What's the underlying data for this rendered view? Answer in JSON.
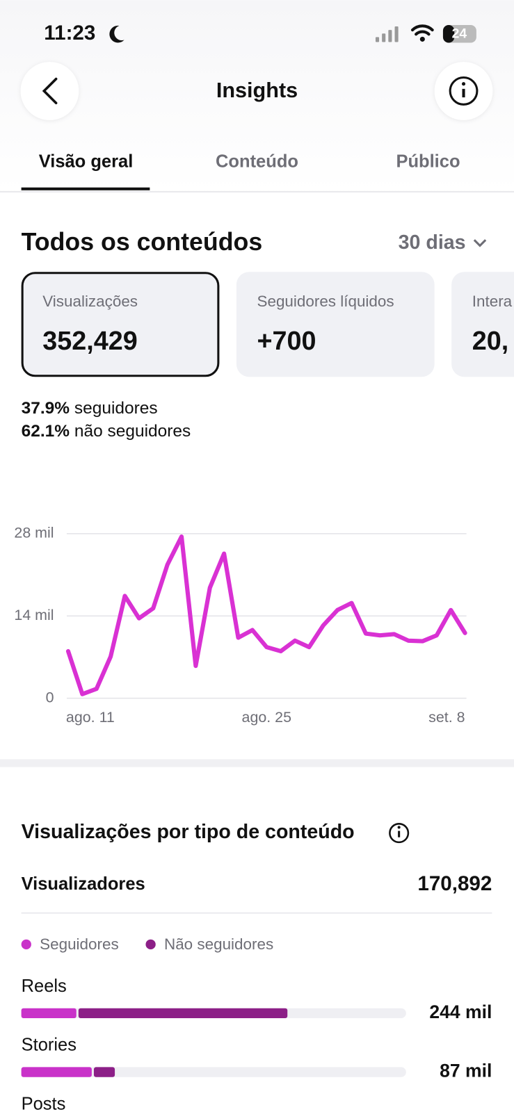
{
  "status_bar": {
    "time": "11:23",
    "battery": "24"
  },
  "header": {
    "title": "Insights"
  },
  "tabs": [
    "Visão geral",
    "Conteúdo",
    "Público"
  ],
  "summary": {
    "title": "Todos os conteúdos",
    "period": "30 dias",
    "cards": [
      {
        "label": "Visualizações",
        "value": "352,429"
      },
      {
        "label": "Seguidores líquidos",
        "value": "+700"
      },
      {
        "label": "Intera",
        "value": "20,"
      }
    ],
    "split": [
      {
        "value": "37.9%",
        "label": "seguidores"
      },
      {
        "value": "62.1%",
        "label": "não seguidores"
      }
    ]
  },
  "chart_data": [
    {
      "type": "line",
      "x": [
        "ago. 11",
        null,
        null,
        null,
        null,
        null,
        null,
        null,
        null,
        null,
        null,
        null,
        null,
        null,
        "ago. 25",
        null,
        null,
        null,
        null,
        null,
        null,
        null,
        null,
        null,
        null,
        null,
        null,
        null,
        "set. 8"
      ],
      "series": [
        {
          "color": "#d931d3",
          "values": [
            8000,
            700,
            1600,
            7100,
            17400,
            13600,
            15300,
            22700,
            27500,
            5500,
            18800,
            24600,
            10300,
            11600,
            8700,
            8000,
            9800,
            8700,
            12400,
            15000,
            16200,
            11000,
            10700,
            10900,
            9800,
            9700,
            10700,
            15000,
            11100
          ]
        }
      ],
      "ylim": [
        0,
        28000
      ],
      "yticks": [
        0,
        {
          "value": 14000,
          "label": "14 mil"
        },
        {
          "value": 28000,
          "label": "28 mil"
        }
      ],
      "grid": true
    },
    {
      "type": "stacked_hbar",
      "categories": [
        "Reels",
        "Stories",
        "Posts"
      ],
      "series": [
        {
          "name": "Seguidores",
          "color": "#c932c9",
          "values": [
            52000,
            66000,
            null
          ]
        },
        {
          "name": "Não seguidores",
          "color": "#8c1f87",
          "values": [
            192000,
            21000,
            null
          ]
        }
      ],
      "total_labels": [
        "244 mil",
        "87 mil",
        null
      ],
      "xlim": [
        0,
        350000
      ]
    }
  ],
  "breakdown": {
    "title": "Visualizações por tipo de conteúdo",
    "viewers_label": "Visualizadores",
    "viewers_value": "170,892"
  }
}
